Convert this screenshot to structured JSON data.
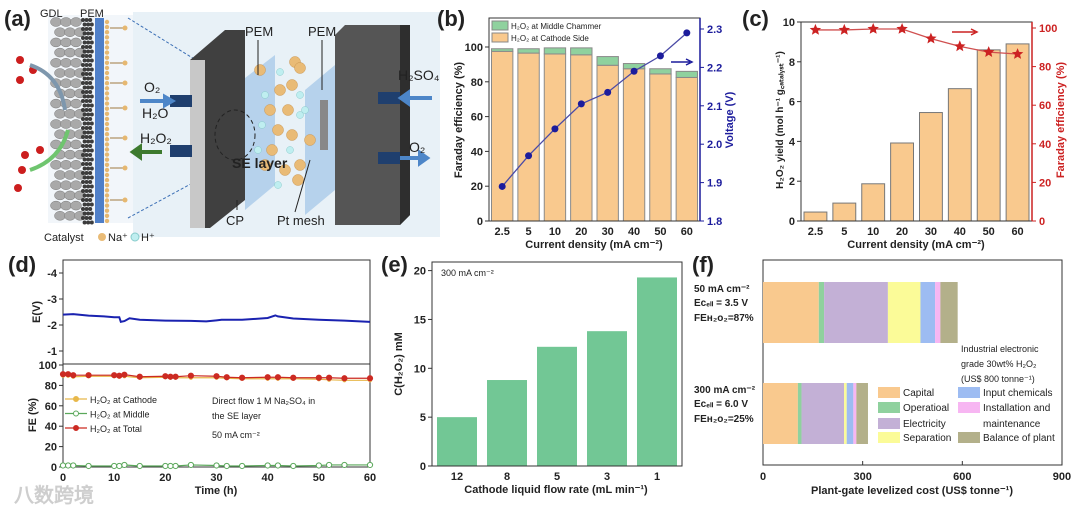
{
  "panel_labels": [
    "(a)",
    "(b)",
    "(c)",
    "(d)",
    "(e)",
    "(f)"
  ],
  "panel_a": {
    "gdl": "GDL",
    "pem_left": "PEM",
    "pem_1": "PEM",
    "pem_2": "PEM",
    "o2_in": "O₂",
    "h2o_in": "H₂O",
    "h2o2_out": "H₂O₂",
    "h2so4_in": "H₂SO₄",
    "o2_out": "O₂",
    "se_layer": "SE layer",
    "cp": "CP",
    "pt_mesh": "Pt mesh",
    "catalyst": "Catalyst",
    "na": "Na⁺",
    "h": "H⁺"
  },
  "watermark": "八数跨境",
  "chart_data": [
    {
      "type": "stacked-bar+line",
      "categories": [
        "2.5",
        "5",
        "10",
        "20",
        "30",
        "40",
        "50",
        "60"
      ],
      "series": [
        {
          "name": "H₂O₂ at Cathode Side",
          "values": [
            97.5,
            96.5,
            96,
            95.5,
            89.5,
            87.5,
            84.5,
            82.5
          ],
          "color": "#f9c98e"
        },
        {
          "name": "H₂O₂ at Middle Chammer",
          "values": [
            1.5,
            2.5,
            3.5,
            4,
            5,
            3,
            3,
            3.5
          ],
          "color": "#8fd19e"
        }
      ],
      "line": {
        "name": "Voltage",
        "values": [
          1.89,
          1.97,
          2.04,
          2.105,
          2.135,
          2.19,
          2.23,
          2.29
        ],
        "color": "#1c1c9c"
      },
      "xlabel": "Current density (mA cm⁻²)",
      "ylabel": "Faraday efficiency (%)",
      "y2label": "Voltage (V)",
      "ylim": [
        0,
        117
      ],
      "y2lim": [
        1.8,
        2.3
      ],
      "yticks": [
        "0",
        "20",
        "40",
        "60",
        "80",
        "100"
      ],
      "y2ticks": [
        "1.8",
        "1.9",
        "2.0",
        "2.1",
        "2.2",
        "2.3"
      ],
      "legend": "top-left"
    },
    {
      "type": "bar+line",
      "categories": [
        "2.5",
        "5",
        "10",
        "20",
        "30",
        "40",
        "50",
        "60"
      ],
      "series": [
        {
          "name": "H₂O₂ yield",
          "values": [
            0.45,
            0.9,
            1.87,
            3.92,
            5.45,
            6.65,
            8.6,
            8.9
          ],
          "color": "#f9c98e"
        }
      ],
      "line": {
        "name": "Faraday efficiency",
        "values": [
          99,
          99,
          99.5,
          99.5,
          94.5,
          90.5,
          87.5,
          86.5
        ],
        "color": "#cc2222"
      },
      "xlabel": "Current density (mA cm⁻²)",
      "ylabel": "H₂O₂ yield (mol h⁻¹ g꜀ₐₜₐₗᵧₛₜ⁻¹)",
      "y2label": "Faraday efficiency (%)",
      "ylim": [
        0,
        10
      ],
      "y2lim": [
        0,
        103
      ],
      "yticks": [
        "0",
        "2",
        "4",
        "6",
        "8",
        "10"
      ],
      "y2ticks": [
        "0",
        "20",
        "40",
        "60",
        "80",
        "100"
      ]
    },
    {
      "type": "line",
      "top": {
        "ylabel": "E(V)",
        "ylim": [
          -4.5,
          -0.5
        ],
        "yticks": [
          "-4",
          "-3",
          "-2",
          "-1"
        ],
        "series": {
          "name": "E",
          "color": "#1a22b0",
          "t": [
            0,
            2,
            5,
            8,
            10,
            11,
            11.3,
            12,
            13,
            15,
            20,
            25,
            28,
            30,
            31,
            35,
            40,
            41.5,
            42,
            45,
            50,
            55,
            60
          ],
          "values": [
            -2.4,
            -2.42,
            -2.36,
            -2.33,
            -2.3,
            -2.3,
            -2.12,
            -2.15,
            -2.26,
            -2.2,
            -2.17,
            -2.16,
            -2.14,
            -2.18,
            -2.2,
            -2.2,
            -2.27,
            -2.37,
            -2.33,
            -2.25,
            -2.2,
            -2.17,
            -2.12
          ]
        }
      },
      "bottom": {
        "ylabel": "FE (%)",
        "ylim": [
          0,
          100
        ],
        "yticks": [
          "0",
          "20",
          "40",
          "60",
          "80",
          "100"
        ],
        "t": [
          0,
          1,
          2,
          5,
          10,
          11,
          12,
          15,
          20,
          21,
          22,
          25,
          30,
          32,
          35,
          40,
          42,
          45,
          50,
          52,
          55,
          60
        ],
        "series": [
          {
            "name": "H₂O₂ at Cathode",
            "color": "#e8b84a",
            "values": [
              89.5,
              89.5,
              88.5,
              89,
              89,
              88.5,
              89,
              87.5,
              88,
              87.5,
              87.5,
              87.5,
              87.5,
              87,
              86.5,
              86.5,
              86.5,
              86.5,
              86,
              85.5,
              85,
              85
            ]
          },
          {
            "name": "H₂O₂ at Middle",
            "color": "#5aa85a",
            "values": [
              1.5,
              1.5,
              1.5,
              1,
              1,
              1,
              2,
              1,
              1,
              1,
              1,
              2,
              1.5,
              1,
              1,
              1.5,
              1.5,
              1,
              1.5,
              2,
              2,
              2
            ]
          },
          {
            "name": "H₂O₂ at Total",
            "color": "#cc2a22",
            "values": [
              91,
              91,
              90,
              90,
              90,
              89.5,
              90.5,
              88.5,
              89,
              88.5,
              88.5,
              89.5,
              89,
              88,
              87.5,
              88,
              88,
              87.5,
              87.5,
              87.5,
              87,
              87
            ]
          }
        ]
      },
      "xlabel": "Time (h)",
      "xlim": [
        0,
        60
      ],
      "xticks": [
        "0",
        "10",
        "20",
        "30",
        "40",
        "50",
        "60"
      ],
      "annotation": [
        "Direct flow 1 M Na₂SO₄ in",
        "the SE layer",
        "50 mA cm⁻²"
      ],
      "legend": "center-left"
    },
    {
      "type": "bar",
      "categories": [
        "12",
        "8",
        "5",
        "3",
        "1"
      ],
      "values": [
        5.0,
        8.8,
        12.2,
        13.8,
        19.3
      ],
      "color": "#72c795",
      "xlabel": "Cathode liquid flow rate (mL min⁻¹)",
      "ylabel": "C(H₂O₂) mM",
      "ylim": [
        0,
        21
      ],
      "yticks": [
        "0",
        "5",
        "10",
        "15",
        "20"
      ],
      "annotation": "300 mA cm⁻²"
    },
    {
      "type": "stacked-barh",
      "categories": [
        {
          "lines": [
            "50 mA cm⁻²",
            "Eᴄₑₗₗ = 3.5 V",
            "FEʜ₂ᴏ₂=87%"
          ],
          "values": [
            168,
            16,
            192,
            98,
            44,
            16,
            52
          ]
        },
        {
          "lines": [
            "300 mA cm⁻²",
            "Eᴄₑₗₗ = 6.0 V",
            "FEʜ₂ᴏ₂=25%"
          ],
          "values": [
            105,
            11,
            128,
            8,
            20,
            9,
            35
          ]
        }
      ],
      "components": [
        {
          "name": "Capital",
          "color": "#f9c98e"
        },
        {
          "name": "Operatioal",
          "color": "#8fd19e"
        },
        {
          "name": "Electricity",
          "color": "#c3b0d6"
        },
        {
          "name": "Separation",
          "color": "#fbfb98"
        },
        {
          "name": "Input chemicals",
          "color": "#9dbcf2"
        },
        {
          "name": "Installation and maintenance",
          "color": "#f7b6f2"
        },
        {
          "name": "Balance of plant",
          "color": "#b3b08a"
        }
      ],
      "legend_labels": [
        "Capital",
        "Operatioal",
        "Electricity",
        "Separation",
        "Input chemicals",
        "Installation and",
        "maintenance",
        "Balance of plant"
      ],
      "annotation": [
        "Industrial electronic",
        "grade 30wt% H₂O₂",
        "(US$ 800 tonne⁻¹)"
      ],
      "xlabel": "Plant-gate levelized cost (US$ tonne⁻¹)",
      "xlim": [
        0,
        900
      ],
      "xticks": [
        "0",
        "300",
        "600",
        "900"
      ]
    }
  ]
}
